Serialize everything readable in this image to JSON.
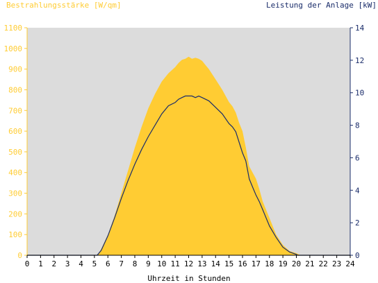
{
  "chart_data": {
    "type": "area",
    "y_left_label": "Bestrahlungsstärke [W/qm]",
    "y_right_label": "Leistung der Anlage [kW]",
    "xlabel": "Uhrzeit in Stunden",
    "x_ticks": [
      "0",
      "1",
      "2",
      "3",
      "4",
      "5",
      "6",
      "7",
      "8",
      "9",
      "10",
      "11",
      "12",
      "13",
      "14",
      "15",
      "16",
      "17",
      "18",
      "19",
      "20",
      "21",
      "22",
      "23",
      "24"
    ],
    "y_left_ticks": [
      "0",
      "100",
      "200",
      "300",
      "400",
      "500",
      "600",
      "700",
      "800",
      "900",
      "1000",
      "1100"
    ],
    "y_right_ticks": [
      "0",
      "2",
      "4",
      "6",
      "8",
      "10",
      "12",
      "14"
    ],
    "xlim": [
      0,
      24
    ],
    "y_left_lim": [
      0,
      1100
    ],
    "y_right_lim": [
      0,
      14
    ],
    "grid": false,
    "colors": {
      "irradiance_fill": "#ffcc33",
      "power_line": "#1a2c6a",
      "plot_background": "#dcdcdc",
      "left_axis_text": "#ffcc33",
      "right_axis_text": "#1a2c6a"
    },
    "series": [
      {
        "axis": "left",
        "x": [
          0,
          5.2,
          5.5,
          6,
          6.5,
          7,
          7.5,
          8,
          8.5,
          9,
          9.5,
          10,
          10.5,
          11,
          11.25,
          11.5,
          11.75,
          12,
          12.25,
          12.5,
          12.75,
          13,
          13.25,
          13.5,
          14,
          14.5,
          15,
          15.25,
          15.5,
          15.75,
          16,
          16.25,
          16.5,
          16.75,
          17,
          17.25,
          17.5,
          18,
          18.5,
          19,
          19.5,
          20,
          20.3,
          24
        ],
        "y": [
          0,
          0,
          30,
          100,
          190,
          300,
          410,
          520,
          620,
          710,
          780,
          840,
          880,
          910,
          930,
          945,
          950,
          960,
          950,
          955,
          950,
          940,
          920,
          900,
          850,
          800,
          740,
          720,
          690,
          640,
          600,
          520,
          430,
          400,
          370,
          320,
          260,
          180,
          100,
          50,
          20,
          10,
          0,
          0
        ]
      },
      {
        "axis": "right",
        "x": [
          0,
          5.2,
          5.5,
          6,
          6.5,
          7,
          7.5,
          8,
          8.5,
          9,
          9.5,
          10,
          10.5,
          11,
          11.25,
          11.5,
          11.75,
          12,
          12.25,
          12.5,
          12.75,
          13,
          13.5,
          14,
          14.5,
          15,
          15.25,
          15.5,
          16,
          16.25,
          16.5,
          16.75,
          17,
          17.25,
          17.5,
          18,
          18.5,
          19,
          19.5,
          20,
          20.1,
          24
        ],
        "y": [
          0,
          0,
          0.3,
          1.2,
          2.3,
          3.5,
          4.6,
          5.6,
          6.5,
          7.3,
          8.0,
          8.7,
          9.2,
          9.4,
          9.6,
          9.7,
          9.8,
          9.8,
          9.8,
          9.7,
          9.8,
          9.7,
          9.5,
          9.1,
          8.7,
          8.1,
          7.9,
          7.6,
          6.3,
          5.8,
          4.7,
          4.2,
          3.7,
          3.3,
          2.8,
          1.8,
          1.1,
          0.5,
          0.2,
          0.05,
          0,
          0
        ]
      }
    ]
  }
}
